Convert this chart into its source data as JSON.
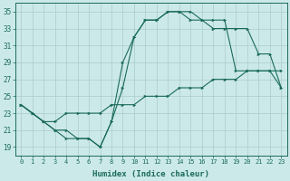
{
  "xlabel": "Humidex (Indice chaleur)",
  "xlim": [
    -0.5,
    23.5
  ],
  "ylim": [
    18,
    36
  ],
  "yticks": [
    19,
    21,
    23,
    25,
    27,
    29,
    31,
    33,
    35
  ],
  "xticks": [
    0,
    1,
    2,
    3,
    4,
    5,
    6,
    7,
    8,
    9,
    10,
    11,
    12,
    13,
    14,
    15,
    16,
    17,
    18,
    19,
    20,
    21,
    22,
    23
  ],
  "bg_color": "#cce9e9",
  "grid_color": "#b0d0d0",
  "line_color": "#1a6b5a",
  "lines": [
    {
      "x": [
        0,
        1,
        2,
        3,
        4,
        5,
        6,
        7,
        8,
        9,
        10,
        11,
        12,
        13,
        14,
        15,
        16,
        17,
        18,
        19,
        20,
        21,
        22,
        23
      ],
      "y": [
        24,
        23,
        22,
        21,
        20,
        20,
        20,
        19,
        22,
        29,
        32,
        34,
        34,
        35,
        35,
        34,
        34,
        34,
        34,
        28,
        28,
        28,
        28,
        28
      ]
    },
    {
      "x": [
        0,
        1,
        2,
        3,
        4,
        5,
        6,
        7,
        8,
        9,
        10,
        11,
        12,
        13,
        14,
        15,
        16,
        17,
        18,
        19,
        20,
        21,
        22,
        23
      ],
      "y": [
        24,
        23,
        22,
        21,
        21,
        20,
        20,
        19,
        22,
        26,
        32,
        34,
        34,
        35,
        35,
        35,
        34,
        33,
        33,
        33,
        33,
        30,
        30,
        26
      ]
    },
    {
      "x": [
        0,
        1,
        2,
        3,
        4,
        5,
        6,
        7,
        8,
        9,
        10,
        11,
        12,
        13,
        14,
        15,
        16,
        17,
        18,
        19,
        20,
        21,
        22,
        23
      ],
      "y": [
        24,
        23,
        22,
        22,
        23,
        23,
        23,
        23,
        24,
        24,
        24,
        25,
        25,
        25,
        26,
        26,
        26,
        27,
        27,
        27,
        28,
        28,
        28,
        26
      ]
    }
  ]
}
